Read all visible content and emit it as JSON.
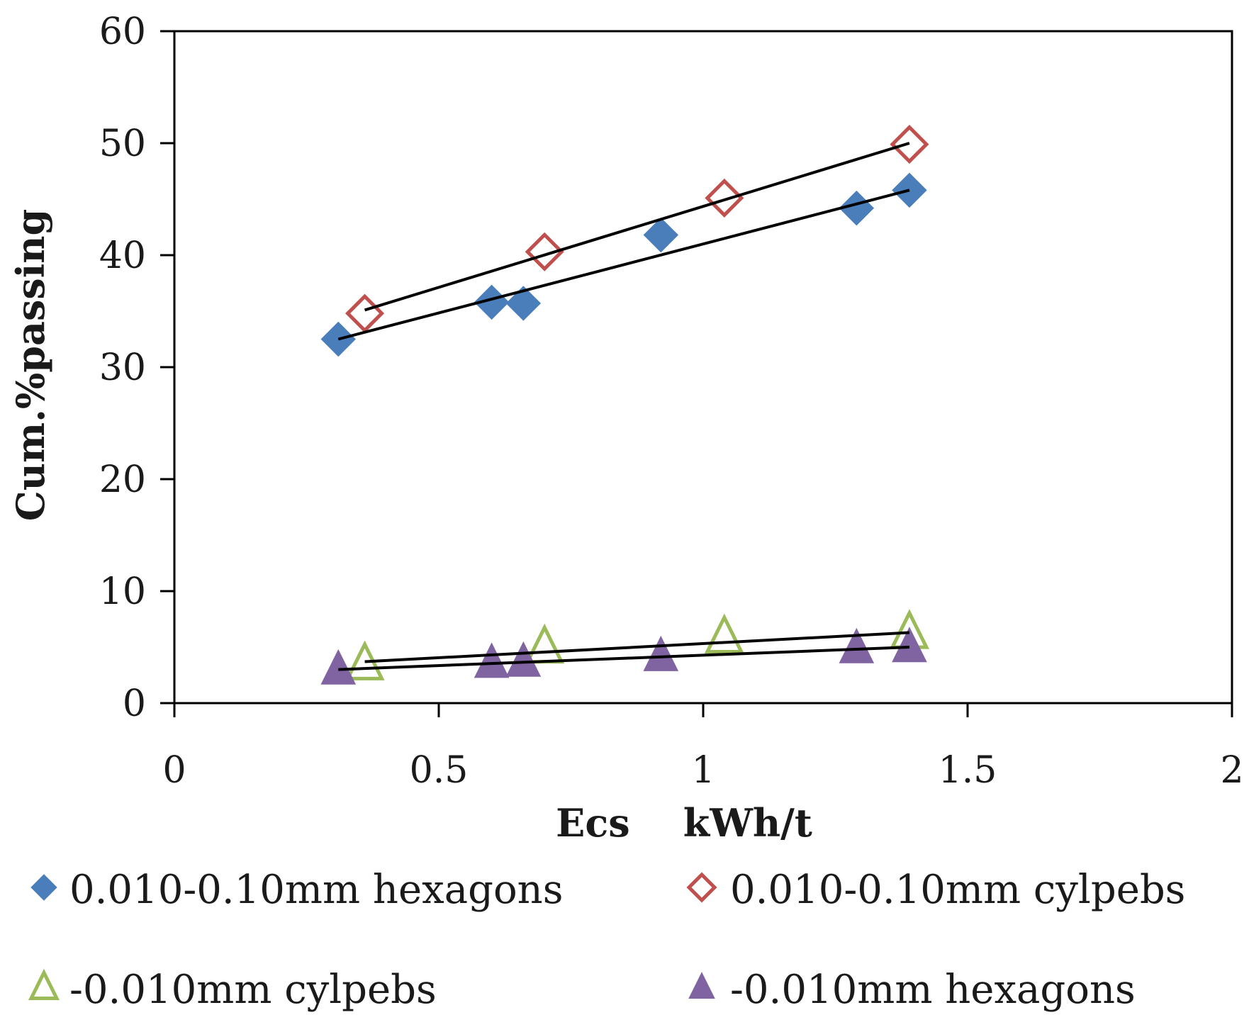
{
  "chart_data": {
    "type": "scatter",
    "title": "",
    "xlabel": "Ecs    kWh/t",
    "ylabel": "Cum.%passing",
    "xlim": [
      0,
      2
    ],
    "ylim": [
      0,
      60
    ],
    "xticks": [
      0,
      0.5,
      1,
      1.5,
      2
    ],
    "xtick_labels": [
      "0",
      "0.5",
      "1",
      "1.5",
      "2"
    ],
    "yticks": [
      0,
      10,
      20,
      30,
      40,
      50,
      60
    ],
    "ytick_labels": [
      "0",
      "10",
      "20",
      "30",
      "40",
      "50",
      "60"
    ],
    "grid": false,
    "legend_position": "bottom",
    "series": [
      {
        "name": "0.010-0.10mm hexagons",
        "marker": "diamond-filled",
        "color": "#4a7ebb",
        "x": [
          0.31,
          0.6,
          0.66,
          0.92,
          1.29,
          1.39
        ],
        "y": [
          32.5,
          35.8,
          35.7,
          41.8,
          44.2,
          45.8
        ],
        "trendline": {
          "x": [
            0.31,
            1.39
          ],
          "y": [
            32.5,
            45.8
          ]
        }
      },
      {
        "name": "0.010-0.10mm cylpebs",
        "marker": "diamond-open",
        "color": "#c0504d",
        "x": [
          0.36,
          0.7,
          1.04,
          1.39
        ],
        "y": [
          34.8,
          40.3,
          45.1,
          49.9
        ],
        "trendline": {
          "x": [
            0.36,
            1.39
          ],
          "y": [
            35.1,
            50.0
          ]
        }
      },
      {
        "name": "-0.010mm cylpebs",
        "marker": "triangle-open",
        "color": "#9bbb59",
        "x": [
          0.36,
          0.7,
          1.04,
          1.39
        ],
        "y": [
          3.5,
          5.0,
          5.9,
          6.3
        ],
        "trendline": {
          "x": [
            0.36,
            1.39
          ],
          "y": [
            3.7,
            6.3
          ]
        }
      },
      {
        "name": "-0.010mm hexagons",
        "marker": "triangle-filled",
        "color": "#8064a2",
        "x": [
          0.31,
          0.6,
          0.66,
          0.92,
          1.29,
          1.39
        ],
        "y": [
          3.0,
          3.6,
          3.7,
          4.2,
          4.9,
          5.0
        ],
        "trendline": {
          "x": [
            0.31,
            1.39
          ],
          "y": [
            3.0,
            5.0
          ]
        }
      }
    ]
  }
}
